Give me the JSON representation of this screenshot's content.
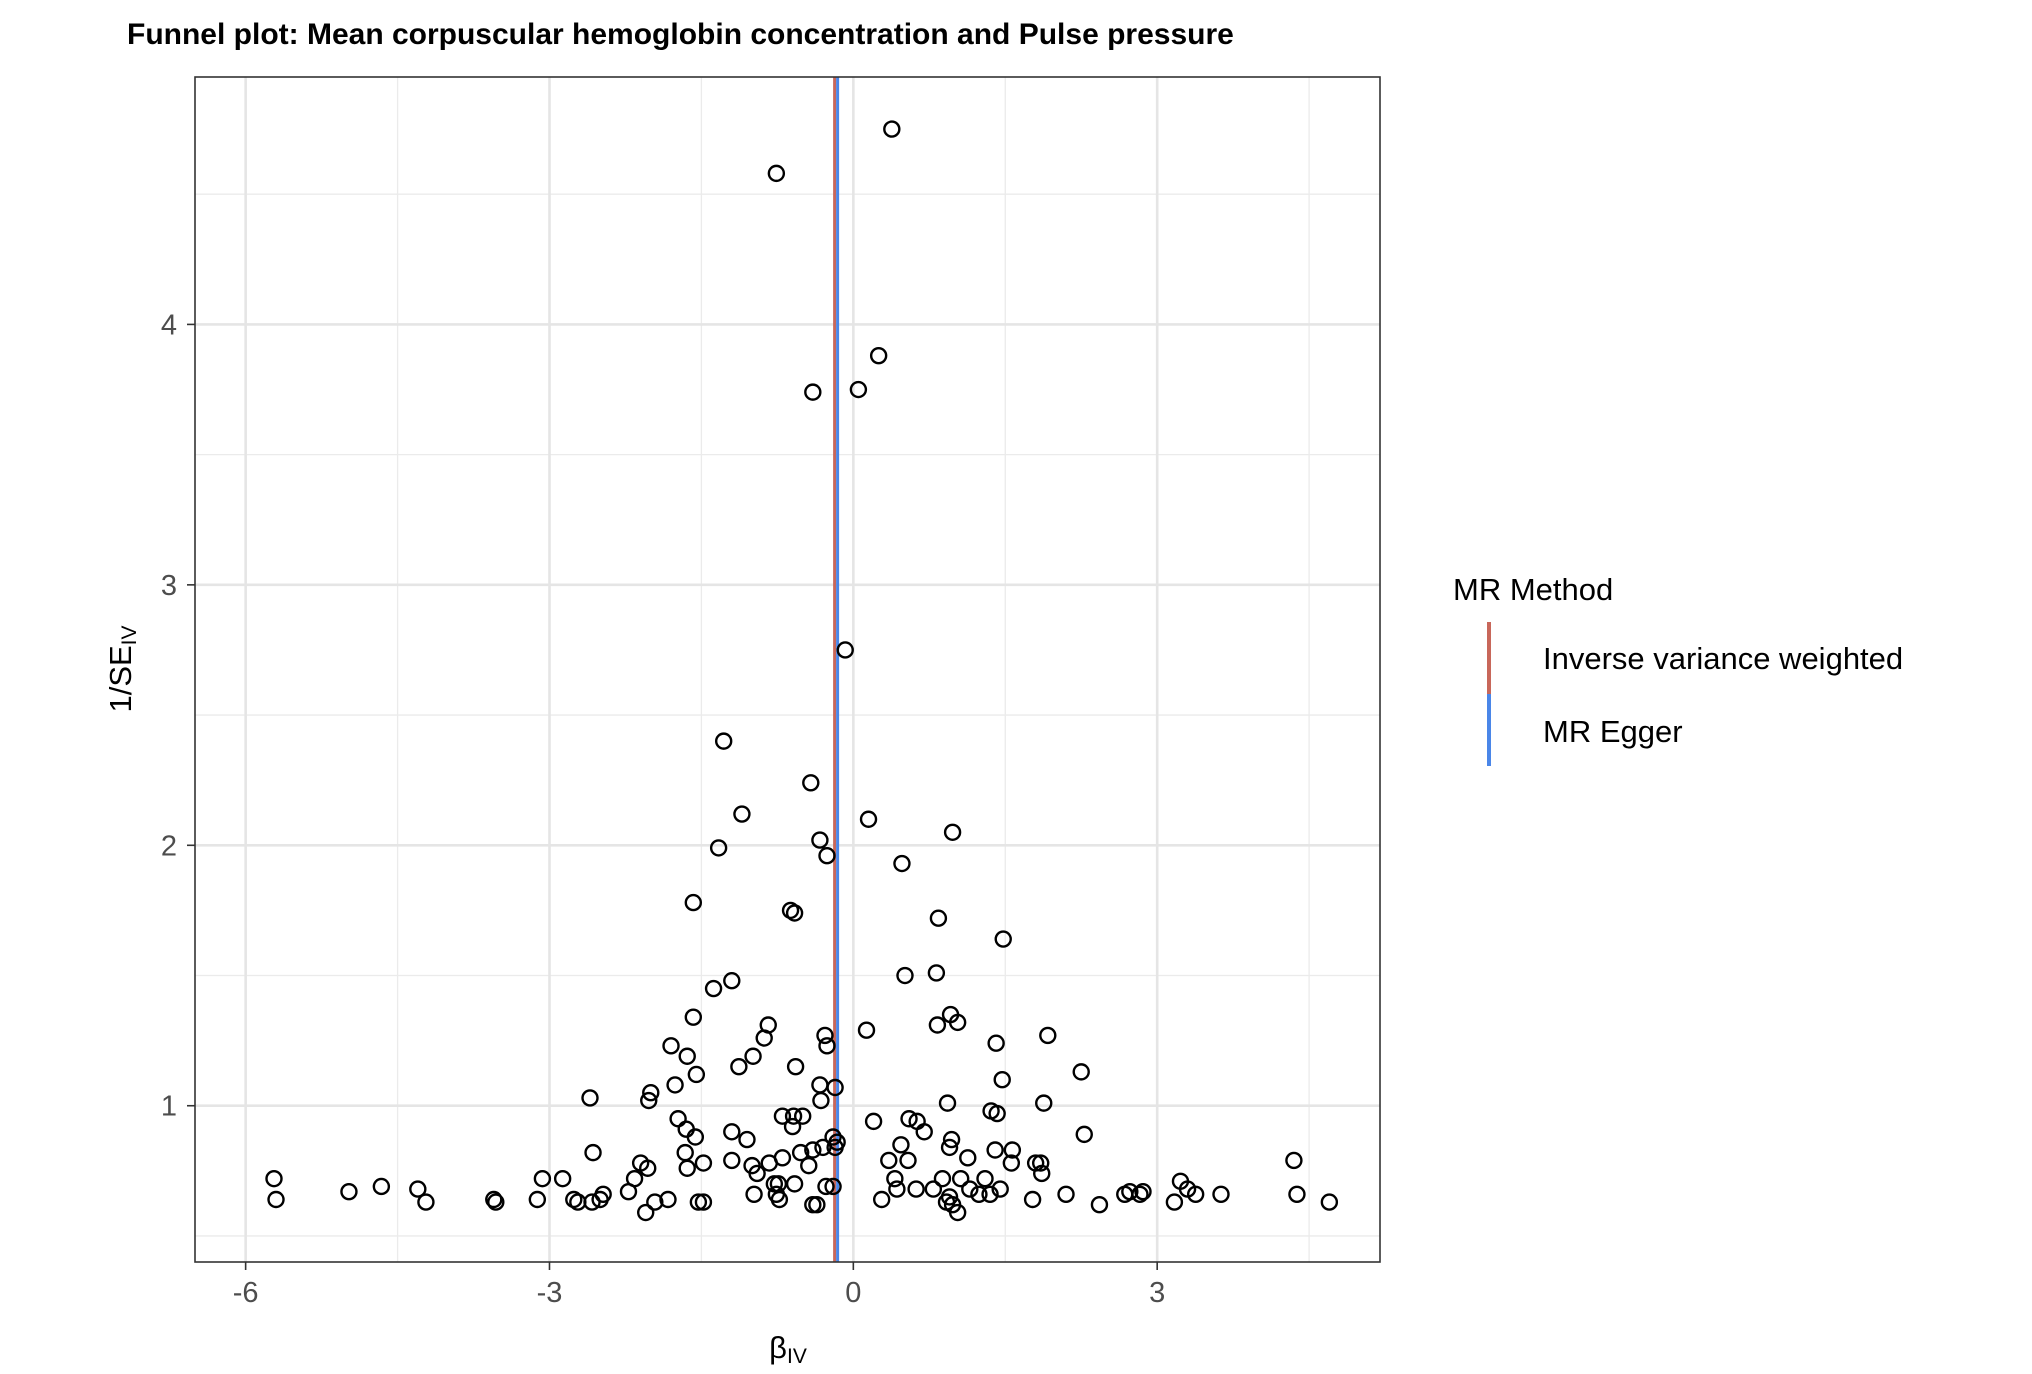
{
  "chart_data": {
    "type": "scatter",
    "title": "Funnel plot: Mean corpuscular hemoglobin concentration and Pulse pressure",
    "xlabel": {
      "main": "β",
      "sub": "IV"
    },
    "ylabel": {
      "prefix": "1/SE",
      "sub": "IV"
    },
    "xlim": [
      -6.5,
      5.2
    ],
    "ylim": [
      0.4,
      4.95
    ],
    "x_ticks": [
      -6,
      -3,
      0,
      3
    ],
    "x_tick_labels": [
      "-6",
      "-3",
      "0",
      "3"
    ],
    "y_ticks": [
      1,
      2,
      3,
      4
    ],
    "y_tick_labels": [
      "1",
      "2",
      "3",
      "4"
    ],
    "grid": true,
    "legend": {
      "title": "MR Method",
      "position": "right",
      "items": [
        {
          "label": "Inverse variance weighted",
          "color": "#c8675a"
        },
        {
          "label": "MR Egger",
          "color": "#4a86e8"
        }
      ]
    },
    "vlines": [
      {
        "method": "Inverse variance weighted",
        "x": -0.17,
        "color": "#c8675a"
      },
      {
        "method": "MR Egger",
        "x": -0.17,
        "color": "#4a86e8"
      }
    ],
    "points": [
      [
        0.38,
        4.75
      ],
      [
        -0.76,
        4.58
      ],
      [
        0.25,
        3.88
      ],
      [
        -0.4,
        3.74
      ],
      [
        0.05,
        3.75
      ],
      [
        -0.08,
        2.75
      ],
      [
        -1.28,
        2.4
      ],
      [
        -0.42,
        2.24
      ],
      [
        -1.1,
        2.12
      ],
      [
        0.15,
        2.1
      ],
      [
        -0.33,
        2.02
      ],
      [
        -1.33,
        1.99
      ],
      [
        -0.26,
        1.96
      ],
      [
        0.98,
        2.05
      ],
      [
        0.48,
        1.93
      ],
      [
        -1.58,
        1.78
      ],
      [
        -0.62,
        1.75
      ],
      [
        -0.58,
        1.74
      ],
      [
        0.84,
        1.72
      ],
      [
        1.48,
        1.64
      ],
      [
        -1.2,
        1.48
      ],
      [
        -1.38,
        1.45
      ],
      [
        0.51,
        1.5
      ],
      [
        0.82,
        1.51
      ],
      [
        -1.58,
        1.34
      ],
      [
        -0.84,
        1.31
      ],
      [
        0.96,
        1.35
      ],
      [
        1.03,
        1.32
      ],
      [
        -0.28,
        1.27
      ],
      [
        0.13,
        1.29
      ],
      [
        1.92,
        1.27
      ],
      [
        -0.88,
        1.26
      ],
      [
        -1.8,
        1.23
      ],
      [
        -0.26,
        1.23
      ],
      [
        0.83,
        1.31
      ],
      [
        1.41,
        1.24
      ],
      [
        -1.64,
        1.19
      ],
      [
        -0.99,
        1.19
      ],
      [
        -1.13,
        1.15
      ],
      [
        -0.57,
        1.15
      ],
      [
        -1.55,
        1.12
      ],
      [
        1.47,
        1.1
      ],
      [
        2.25,
        1.13
      ],
      [
        -1.76,
        1.08
      ],
      [
        -0.33,
        1.08
      ],
      [
        -0.18,
        1.07
      ],
      [
        -2.0,
        1.05
      ],
      [
        -2.02,
        1.02
      ],
      [
        -0.32,
        1.02
      ],
      [
        0.93,
        1.01
      ],
      [
        1.88,
        1.01
      ],
      [
        -2.6,
        1.03
      ],
      [
        1.36,
        0.98
      ],
      [
        1.42,
        0.97
      ],
      [
        -1.73,
        0.95
      ],
      [
        -0.7,
        0.96
      ],
      [
        -0.59,
        0.96
      ],
      [
        -0.5,
        0.96
      ],
      [
        -0.6,
        0.92
      ],
      [
        0.2,
        0.94
      ],
      [
        0.55,
        0.95
      ],
      [
        0.63,
        0.94
      ],
      [
        -1.65,
        0.91
      ],
      [
        -1.56,
        0.88
      ],
      [
        -1.2,
        0.9
      ],
      [
        -1.05,
        0.87
      ],
      [
        -0.2,
        0.88
      ],
      [
        -0.16,
        0.86
      ],
      [
        0.7,
        0.9
      ],
      [
        0.97,
        0.87
      ],
      [
        2.28,
        0.89
      ],
      [
        -2.57,
        0.82
      ],
      [
        -1.66,
        0.82
      ],
      [
        -0.52,
        0.82
      ],
      [
        -0.4,
        0.83
      ],
      [
        -0.3,
        0.84
      ],
      [
        -0.18,
        0.84
      ],
      [
        0.47,
        0.85
      ],
      [
        0.95,
        0.84
      ],
      [
        1.4,
        0.83
      ],
      [
        1.57,
        0.83
      ],
      [
        -2.1,
        0.78
      ],
      [
        -2.03,
        0.76
      ],
      [
        -1.64,
        0.76
      ],
      [
        -1.48,
        0.78
      ],
      [
        -1.2,
        0.79
      ],
      [
        -1.0,
        0.77
      ],
      [
        -0.83,
        0.78
      ],
      [
        -0.7,
        0.8
      ],
      [
        -0.44,
        0.77
      ],
      [
        0.35,
        0.79
      ],
      [
        0.54,
        0.79
      ],
      [
        1.13,
        0.8
      ],
      [
        1.56,
        0.78
      ],
      [
        1.8,
        0.78
      ],
      [
        1.85,
        0.78
      ],
      [
        4.35,
        0.79
      ],
      [
        -5.72,
        0.72
      ],
      [
        -3.07,
        0.72
      ],
      [
        -2.87,
        0.72
      ],
      [
        -2.16,
        0.72
      ],
      [
        -0.95,
        0.74
      ],
      [
        -0.78,
        0.7
      ],
      [
        -0.74,
        0.7
      ],
      [
        -0.58,
        0.7
      ],
      [
        -0.27,
        0.69
      ],
      [
        -0.2,
        0.69
      ],
      [
        0.41,
        0.72
      ],
      [
        0.88,
        0.72
      ],
      [
        1.06,
        0.72
      ],
      [
        1.3,
        0.72
      ],
      [
        1.86,
        0.74
      ],
      [
        3.23,
        0.71
      ],
      [
        3.3,
        0.68
      ],
      [
        -4.98,
        0.67
      ],
      [
        -4.66,
        0.69
      ],
      [
        -4.3,
        0.68
      ],
      [
        -2.47,
        0.66
      ],
      [
        -2.22,
        0.67
      ],
      [
        -1.96,
        0.63
      ],
      [
        -0.98,
        0.66
      ],
      [
        -0.76,
        0.66
      ],
      [
        -0.73,
        0.64
      ],
      [
        -0.4,
        0.62
      ],
      [
        -0.36,
        0.62
      ],
      [
        0.28,
        0.64
      ],
      [
        0.43,
        0.68
      ],
      [
        0.62,
        0.68
      ],
      [
        0.79,
        0.68
      ],
      [
        0.95,
        0.65
      ],
      [
        1.15,
        0.68
      ],
      [
        1.24,
        0.66
      ],
      [
        1.35,
        0.66
      ],
      [
        1.45,
        0.68
      ],
      [
        1.77,
        0.64
      ],
      [
        2.1,
        0.66
      ],
      [
        2.68,
        0.66
      ],
      [
        2.73,
        0.67
      ],
      [
        2.83,
        0.66
      ],
      [
        2.86,
        0.67
      ],
      [
        3.38,
        0.66
      ],
      [
        3.63,
        0.66
      ],
      [
        4.38,
        0.66
      ],
      [
        -5.7,
        0.64
      ],
      [
        -4.22,
        0.63
      ],
      [
        -3.55,
        0.64
      ],
      [
        -3.53,
        0.63
      ],
      [
        -3.12,
        0.64
      ],
      [
        -2.76,
        0.64
      ],
      [
        -2.72,
        0.63
      ],
      [
        -2.58,
        0.63
      ],
      [
        -2.5,
        0.64
      ],
      [
        -1.83,
        0.64
      ],
      [
        -1.53,
        0.63
      ],
      [
        -1.48,
        0.63
      ],
      [
        0.92,
        0.63
      ],
      [
        0.98,
        0.62
      ],
      [
        1.03,
        0.59
      ],
      [
        2.43,
        0.62
      ],
      [
        3.17,
        0.63
      ],
      [
        4.7,
        0.63
      ],
      [
        -2.05,
        0.59
      ]
    ]
  }
}
